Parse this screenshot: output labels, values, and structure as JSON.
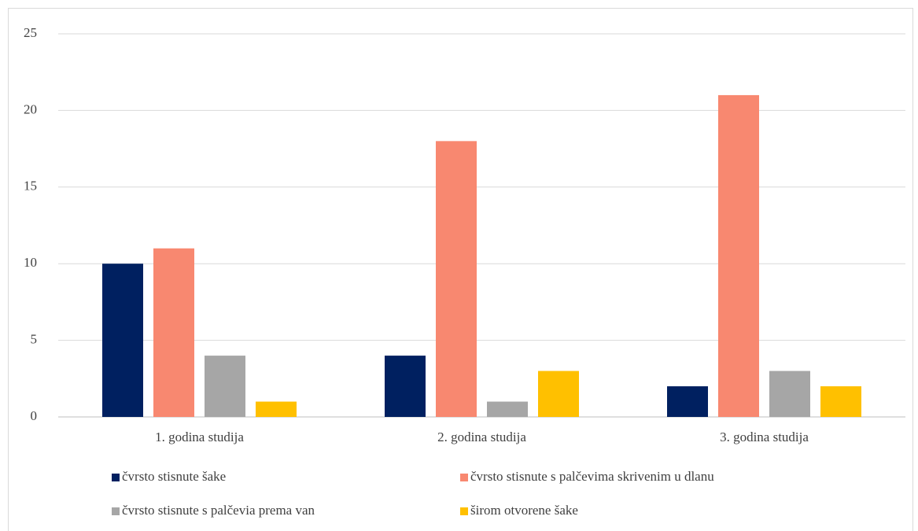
{
  "chart_data": {
    "type": "bar",
    "categories": [
      "1. godina studija",
      "2. godina studija",
      "3. godina studija"
    ],
    "series": [
      {
        "name": "čvrsto stisnute šake",
        "color": "#002060",
        "values": [
          10,
          4,
          2
        ]
      },
      {
        "name": "čvrsto stisnute s palčevima skrivenim u dlanu",
        "color": "#f88870",
        "values": [
          11,
          18,
          21
        ]
      },
      {
        "name": "čvrsto stisnute s palčevia prema van",
        "color": "#a6a6a6",
        "values": [
          4,
          1,
          3
        ]
      },
      {
        "name": "širom otvorene šake",
        "color": "#ffc000",
        "values": [
          1,
          3,
          2
        ]
      }
    ],
    "ylim": [
      0,
      25
    ],
    "yticks": [
      0,
      5,
      10,
      15,
      20,
      25
    ],
    "grid": true,
    "legend": "bottom"
  }
}
